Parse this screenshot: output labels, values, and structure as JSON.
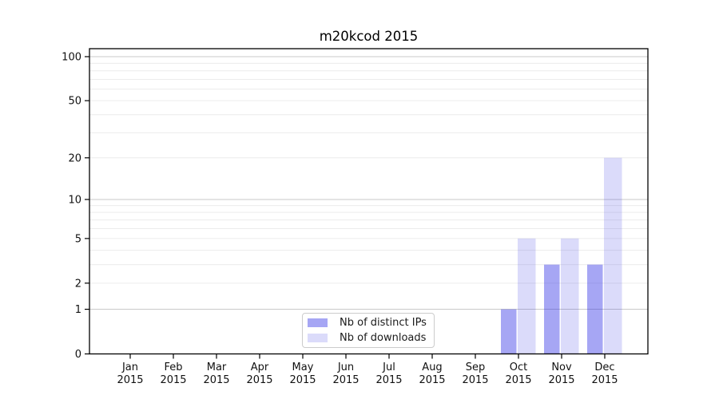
{
  "title": "m20kcod 2015",
  "chart_data": {
    "type": "bar",
    "title": "m20kcod 2015",
    "categories": [
      "Jan 2015",
      "Feb 2015",
      "Mar 2015",
      "Apr 2015",
      "May 2015",
      "Jun 2015",
      "Jul 2015",
      "Aug 2015",
      "Sep 2015",
      "Oct 2015",
      "Nov 2015",
      "Dec 2015"
    ],
    "series": [
      {
        "name": "Nb of distinct IPs",
        "color": "rgba(40,40,228,0.41)",
        "values": [
          0,
          0,
          0,
          0,
          0,
          0,
          0,
          0,
          0,
          1,
          3,
          3
        ]
      },
      {
        "name": "Nb of downloads",
        "color": "rgba(40,40,228,0.17)",
        "values": [
          0,
          0,
          0,
          0,
          0,
          0,
          0,
          0,
          0,
          5,
          5,
          20
        ]
      }
    ],
    "yscale": "log1p",
    "y_ticks": [
      0,
      1,
      2,
      5,
      10,
      20,
      50,
      100
    ],
    "ylim": [
      0,
      113
    ],
    "xlabel": "",
    "ylabel": "",
    "grid": "horizontal-both-minor-major",
    "legend_position": "lower-center-inside"
  },
  "colors": {
    "grid_major": "#c9c9c9",
    "grid_minor": "#ececec",
    "axis": "#000000",
    "text": "#111111"
  }
}
